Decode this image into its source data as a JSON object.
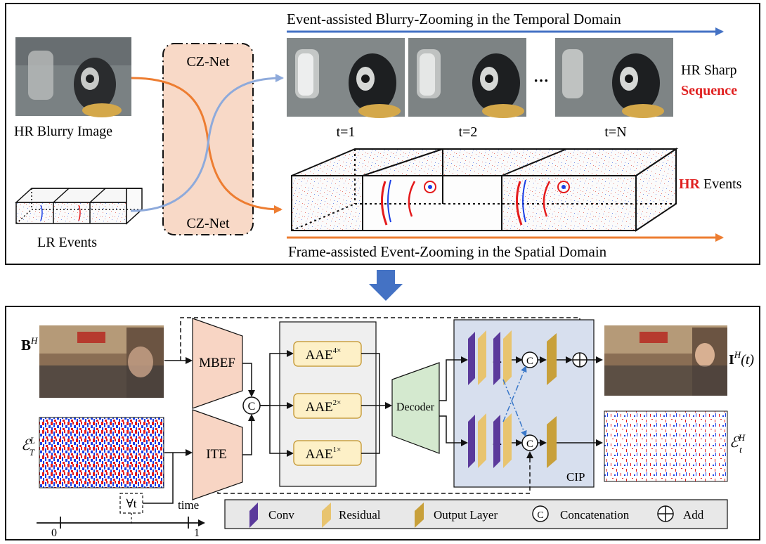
{
  "top": {
    "temporal_title": "Event-assisted Blurry-Zooming in the Temporal Domain",
    "spatial_title": "Frame-assisted Event-Zooming in the Spatial Domain",
    "cznet_label": "CZ-Net",
    "blurry_label": "HR Blurry Image",
    "lr_events_label": "LR Events",
    "frame_labels": [
      "t=1",
      "t=2",
      "t=N"
    ],
    "ellipsis": "···",
    "hr_sharp_label": "HR Sharp",
    "sequence_label": "Sequence",
    "hr_label": "HR",
    "events_label": " Events"
  },
  "bottom": {
    "input_blur": {
      "main": "B",
      "sup": "H"
    },
    "input_events": {
      "main": "ℰ",
      "sup": "L",
      "sub": "T"
    },
    "output_frame": {
      "main": "I",
      "sup": "H",
      "suffix": "(t)"
    },
    "output_events": {
      "main": "ℰ",
      "sup": "H",
      "sub": "t"
    },
    "mbef_label": "MBEF",
    "ite_label": "ITE",
    "concat_symbol": "C",
    "aae_blocks": [
      {
        "label": "AAE",
        "scale": "4×"
      },
      {
        "label": "AAE",
        "scale": "2×"
      },
      {
        "label": "AAE",
        "scale": "1×"
      }
    ],
    "decoder_label": "Decoder",
    "cip_label": "CIP",
    "time_label": "time",
    "forall_label": "∀t",
    "axis_ticks": [
      "0",
      "1"
    ],
    "dots": "···"
  },
  "legend": {
    "conv": "Conv",
    "residual": "Residual",
    "output_layer": "Output Layer",
    "concatenation": "Concatenation",
    "add": "Add"
  },
  "colors": {
    "blue_arrow": "#4472c4",
    "orange_arrow": "#ed7d31",
    "cz_box": "#f8d9c7",
    "mbef_ite": "#f8d5c4",
    "aae_fill": "#fdf0c7",
    "aae_stroke": "#c9a043",
    "decoder": "#d4e9cf",
    "cip_bg": "#d7dfee",
    "conv": "#5b3a9b",
    "residual": "#e8c46f",
    "output_layer": "#c8a03a",
    "hr_red": "#e02020",
    "event_red": "#e41a1c",
    "event_blue": "#1a3fe6"
  }
}
